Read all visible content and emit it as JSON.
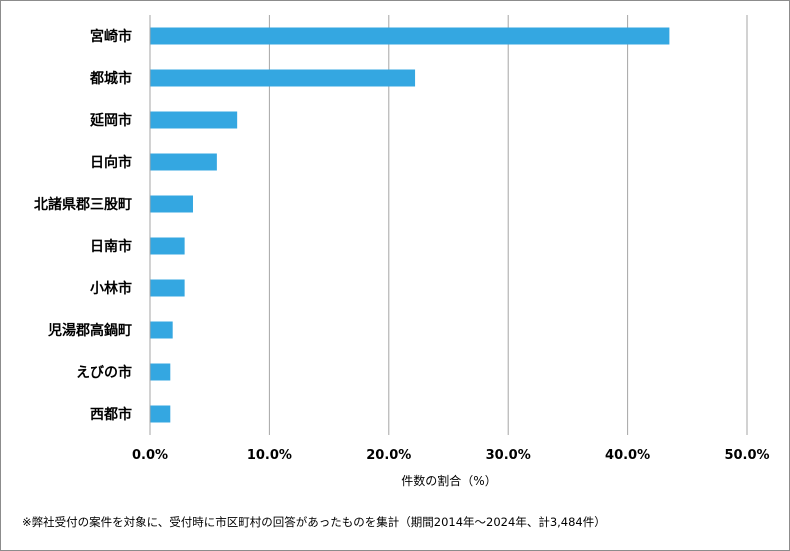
{
  "chart_data": {
    "type": "bar",
    "orientation": "horizontal",
    "categories": [
      "宮崎市",
      "都城市",
      "延岡市",
      "日向市",
      "北諸県郡三股町",
      "日南市",
      "小林市",
      "児湯郡高鍋町",
      "えびの市",
      "西都市"
    ],
    "values": [
      43.5,
      22.2,
      7.3,
      5.6,
      3.6,
      2.9,
      2.9,
      1.9,
      1.7,
      1.7
    ],
    "xlabel": "件数の割合（%）",
    "xlim": [
      0,
      50
    ],
    "ticks": [
      "0.0%",
      "10.0%",
      "20.0%",
      "30.0%",
      "40.0%",
      "50.0%"
    ],
    "bar_color": "#34a7e1",
    "grid": "vertical"
  },
  "footnote": "※弊社受付の案件を対象に、受付時に市区町村の回答があったものを集計（期間2014年～2024年、計3,484件）"
}
